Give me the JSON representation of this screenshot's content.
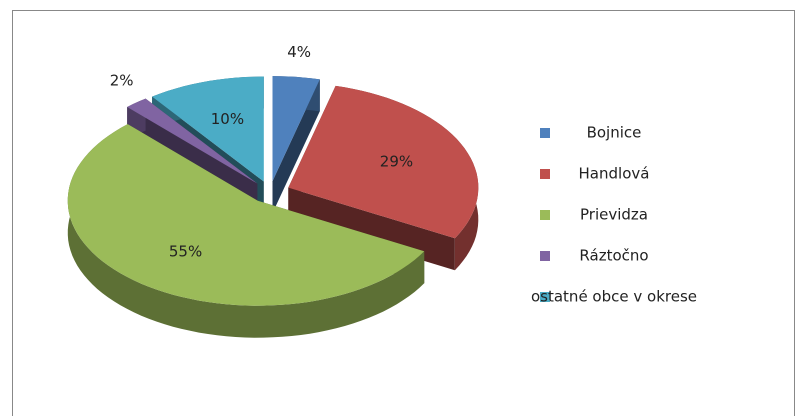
{
  "chart_data": {
    "type": "pie3d",
    "categories": [
      "Bojnice",
      "Handlová",
      "Prievidza",
      "Ráztočno",
      "ostatné obce v okrese"
    ],
    "values": [
      4,
      29,
      55,
      2,
      10
    ],
    "value_labels": [
      "4%",
      "29%",
      "55%",
      "2%",
      "10%"
    ],
    "colors": [
      "#4f81bd",
      "#c0504d",
      "#9bbb59",
      "#8064a2",
      "#4bacc6"
    ],
    "legend": "right"
  }
}
